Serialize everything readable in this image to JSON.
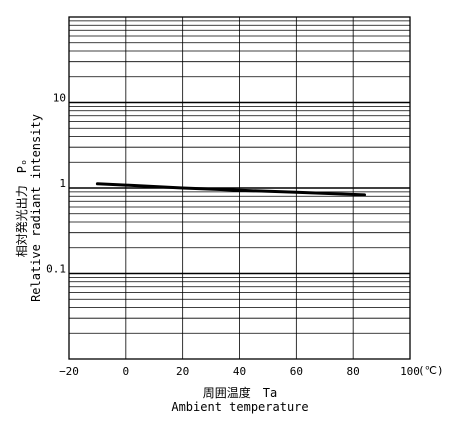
{
  "chart_data": {
    "type": "line",
    "xlabel_jp": "周囲温度　Ta",
    "xlabel_en": "Ambient temperature",
    "ylabel_jp": "相対発光出力　Pₒ",
    "ylabel_en": "Relative radiant intensity",
    "x_unit": "(℃)",
    "xlim": [
      -20,
      100
    ],
    "ylim": [
      0.01,
      100
    ],
    "yscale": "log",
    "x_ticks": [
      -20,
      0,
      20,
      40,
      60,
      80,
      100
    ],
    "x_tick_labels": [
      "−20",
      "0",
      "20",
      "40",
      "60",
      "80",
      "100"
    ],
    "y_ticks": [
      0.1,
      1,
      10
    ],
    "y_tick_labels": [
      "0.1",
      "1",
      "10"
    ],
    "grid": true,
    "series": [
      {
        "x": [
          -10,
          0,
          20,
          40,
          60,
          84
        ],
        "y": [
          1.12,
          1.08,
          1.0,
          0.94,
          0.89,
          0.83
        ],
        "color": "#000000"
      }
    ]
  }
}
